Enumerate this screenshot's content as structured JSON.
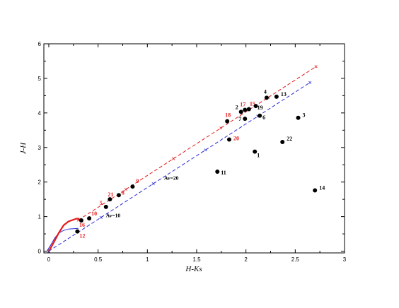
{
  "chart_data": {
    "type": "scatter",
    "xlabel": "H-Ks",
    "ylabel": "J-H",
    "xlim": [
      -0.05,
      3.0
    ],
    "ylim": [
      -0.05,
      6.0
    ],
    "xticks": [
      0,
      0.5,
      1,
      1.5,
      2,
      2.5,
      3
    ],
    "xtick_labels": [
      "0",
      "0.5",
      "1",
      "1.5",
      "2",
      "2.5",
      "3"
    ],
    "yticks": [
      0,
      1,
      2,
      3,
      4,
      5,
      6
    ],
    "ytick_labels": [
      "0",
      "1",
      "2",
      "3",
      "4",
      "5",
      "6"
    ],
    "grid": false,
    "colors": {
      "red": "#e41a1c",
      "blue": "#2b2bd6",
      "black": "#000000"
    },
    "points": [
      {
        "label": "1",
        "x": 2.09,
        "y": 2.88,
        "label_color": "black"
      },
      {
        "label": "2",
        "x": 1.95,
        "y": 4.03,
        "label_color": "black"
      },
      {
        "label": "3",
        "x": 2.53,
        "y": 3.86,
        "label_color": "black"
      },
      {
        "label": "4",
        "x": 2.21,
        "y": 4.44,
        "label_color": "black"
      },
      {
        "label": "5",
        "x": 0.58,
        "y": 1.28,
        "label_color": "red"
      },
      {
        "label": "6",
        "x": 2.14,
        "y": 3.92,
        "label_color": "black"
      },
      {
        "label": "7",
        "x": 1.99,
        "y": 3.83,
        "label_color": "black"
      },
      {
        "label": "8",
        "x": 0.71,
        "y": 1.62,
        "label_color": "red"
      },
      {
        "label": "9",
        "x": 0.85,
        "y": 1.87,
        "label_color": "red"
      },
      {
        "label": "10",
        "x": 0.41,
        "y": 0.95,
        "label_color": "red"
      },
      {
        "label": "11",
        "x": 1.71,
        "y": 2.3,
        "label_color": "black"
      },
      {
        "label": "12",
        "x": 0.29,
        "y": 0.57,
        "label_color": "red"
      },
      {
        "label": "13",
        "x": 2.31,
        "y": 4.47,
        "label_color": "black"
      },
      {
        "label": "14",
        "x": 2.7,
        "y": 1.76,
        "label_color": "black"
      },
      {
        "label": "15",
        "x": 2.03,
        "y": 4.11,
        "label_color": "red"
      },
      {
        "label": "16",
        "x": 0.33,
        "y": 0.89,
        "label_color": "red"
      },
      {
        "label": "17",
        "x": 1.99,
        "y": 4.09,
        "label_color": "red"
      },
      {
        "label": "18",
        "x": 1.81,
        "y": 3.76,
        "label_color": "red"
      },
      {
        "label": "19",
        "x": 2.1,
        "y": 4.2,
        "label_color": "black"
      },
      {
        "label": "20",
        "x": 1.83,
        "y": 3.23,
        "label_color": "red"
      },
      {
        "label": "21",
        "x": 0.62,
        "y": 1.5,
        "label_color": "red"
      },
      {
        "label": "22",
        "x": 2.37,
        "y": 3.16,
        "label_color": "black"
      }
    ],
    "reddening_lines": [
      {
        "color": "red",
        "style": "dashed",
        "x": [
          0.3,
          2.71
        ],
        "y": [
          0.9,
          5.34
        ]
      },
      {
        "color": "blue",
        "style": "dashed",
        "x": [
          0.0,
          2.65
        ],
        "y": [
          0.0,
          4.88
        ]
      }
    ],
    "av_markers": [
      {
        "text": "Av=10",
        "x": 0.58,
        "y": 1.04
      },
      {
        "text": "Av=20",
        "x": 1.17,
        "y": 2.13
      }
    ],
    "dwarf_locus": {
      "color": "red",
      "x": [
        0.0,
        0.05,
        0.1,
        0.15,
        0.2,
        0.25,
        0.28,
        0.31
      ],
      "y": [
        0.0,
        0.25,
        0.52,
        0.75,
        0.86,
        0.91,
        0.94,
        0.94
      ]
    },
    "giant_locus": {
      "color": "blue",
      "x": [
        -0.02,
        0.02,
        0.06,
        0.1,
        0.15,
        0.2,
        0.25,
        0.3
      ],
      "y": [
        0.0,
        0.18,
        0.38,
        0.52,
        0.6,
        0.64,
        0.65,
        0.66
      ]
    }
  }
}
